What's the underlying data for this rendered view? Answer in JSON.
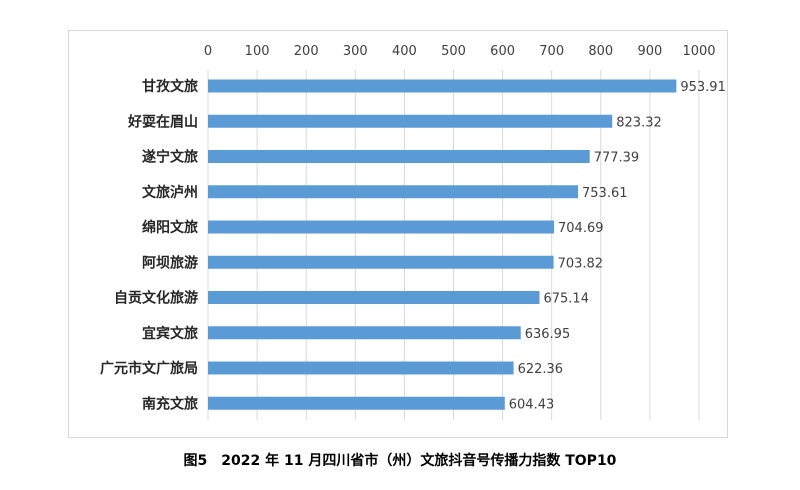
{
  "chart_data": {
    "type": "bar",
    "orientation": "horizontal",
    "categories": [
      "甘孜文旅",
      "好耍在眉山",
      "遂宁文旅",
      "文旅泸州",
      "绵阳文旅",
      "阿坝旅游",
      "自贡文化旅游",
      "宜宾文旅",
      "广元市文广旅局",
      "南充文旅"
    ],
    "values": [
      953.91,
      823.32,
      777.39,
      753.61,
      704.69,
      703.82,
      675.14,
      636.95,
      622.36,
      604.43
    ],
    "value_labels": [
      "953.91",
      "823.32",
      "777.39",
      "753.61",
      "704.69",
      "703.82",
      "675.14",
      "636.95",
      "622.36",
      "604.43"
    ],
    "xlim": [
      0,
      1000
    ],
    "xticks": [
      "0",
      "100",
      "200",
      "300",
      "400",
      "500",
      "600",
      "700",
      "800",
      "900",
      "1000"
    ],
    "axis_position": "top",
    "grid": true,
    "bar_color": "#5b9bd5",
    "title": "图5　2022 年 11 月四川省市（州）文旅抖音号传播力指数 TOP10"
  }
}
